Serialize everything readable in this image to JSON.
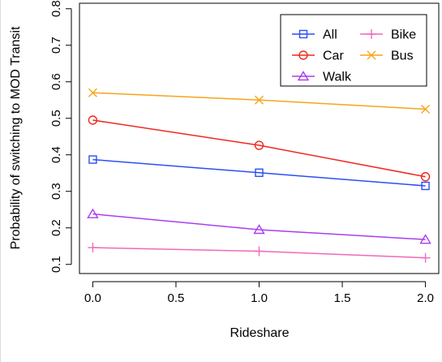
{
  "chart_data": {
    "type": "line",
    "xlabel": "Rideshare",
    "ylabel": "Probability of switching to MOD Transit",
    "xlim": [
      -0.08,
      2.08
    ],
    "ylim": [
      0.075,
      0.815
    ],
    "x_ticks": [
      "0.0",
      "0.5",
      "1.0",
      "1.5",
      "2.0"
    ],
    "x_tick_values": [
      0,
      0.5,
      1,
      1.5,
      2
    ],
    "y_ticks": [
      "0.1",
      "0.2",
      "0.3",
      "0.4",
      "0.5",
      "0.6",
      "0.7",
      "0.8"
    ],
    "y_tick_values": [
      0.1,
      0.2,
      0.3,
      0.4,
      0.5,
      0.6,
      0.7,
      0.8
    ],
    "x": [
      0,
      1,
      2
    ],
    "series": [
      {
        "name": "All",
        "values": [
          0.387,
          0.351,
          0.315
        ],
        "color": "#2b4ff5",
        "marker": "square"
      },
      {
        "name": "Car",
        "values": [
          0.495,
          0.426,
          0.34
        ],
        "color": "#f0281e",
        "marker": "circle"
      },
      {
        "name": "Walk",
        "values": [
          0.238,
          0.195,
          0.168
        ],
        "color": "#a93ef0",
        "marker": "triangle"
      },
      {
        "name": "Bike",
        "values": [
          0.146,
          0.136,
          0.118
        ],
        "color": "#f069b9",
        "marker": "plus"
      },
      {
        "name": "Bus",
        "values": [
          0.57,
          0.55,
          0.525
        ],
        "color": "#f7a41c",
        "marker": "cross"
      }
    ],
    "legend": {
      "placement": "top-right",
      "entries": [
        {
          "name": "All"
        },
        {
          "name": "Bike"
        },
        {
          "name": "Car"
        },
        {
          "name": "Bus"
        },
        {
          "name": "Walk"
        }
      ]
    },
    "grid": false
  }
}
